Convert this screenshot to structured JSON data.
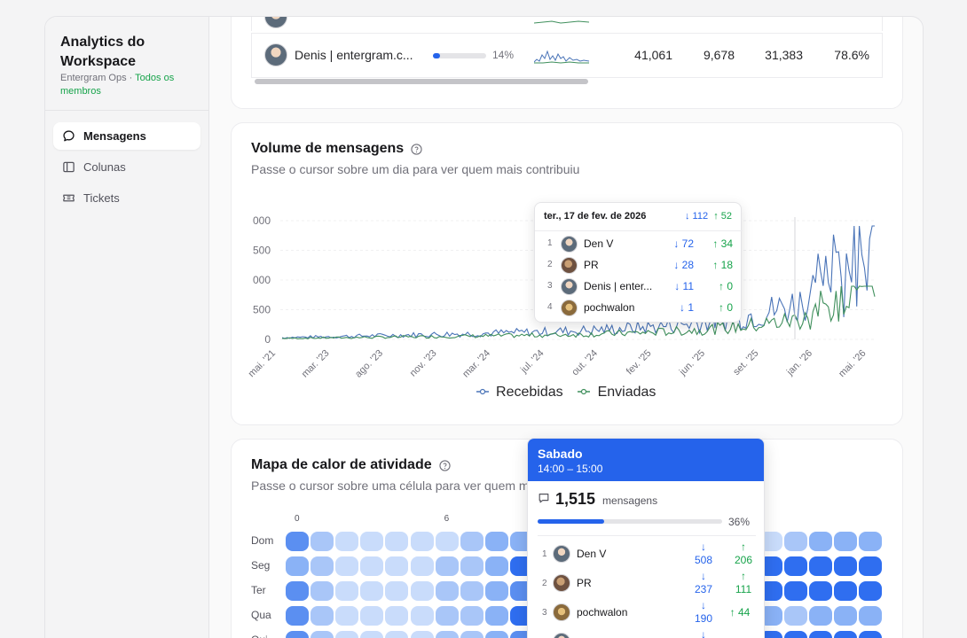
{
  "sidebar": {
    "title": "Analytics do Workspace",
    "workspace": "Entergram Ops",
    "separator": " · ",
    "scope_link": "Todos os membros",
    "nav": [
      {
        "label": "Mensagens",
        "icon": "message-icon",
        "active": true
      },
      {
        "label": "Colunas",
        "icon": "columns-icon",
        "active": false
      },
      {
        "label": "Tickets",
        "icon": "ticket-icon",
        "active": false
      }
    ]
  },
  "members_table": {
    "row": {
      "name": "Denis | entergram.c...",
      "share": "14%",
      "total": "41,061",
      "received": "9,678",
      "sent": "31,383",
      "ratio": "78.6%",
      "share_fraction": 0.14
    }
  },
  "volume": {
    "title": "Volume de mensagens",
    "subtitle": "Passe o cursor sobre um dia para ver quem mais contribuiu",
    "legend": {
      "received": "Recebidas",
      "sent": "Enviadas"
    },
    "tooltip": {
      "date": "ter., 17 de fev. de 2026",
      "total_received": "↓ 112",
      "total_sent": "↑ 52",
      "rows": [
        {
          "rank": "1",
          "name": "Den V",
          "received": "↓ 72",
          "sent": "↑ 34"
        },
        {
          "rank": "2",
          "name": "PR",
          "received": "↓ 28",
          "sent": "↑ 18"
        },
        {
          "rank": "3",
          "name": "Denis | enter...",
          "received": "↓ 11",
          "sent": "↑ 0"
        },
        {
          "rank": "4",
          "name": "pochwalon",
          "received": "↓ 1",
          "sent": "↑ 0"
        }
      ]
    }
  },
  "chart_data": {
    "type": "line",
    "title": "Volume de mensagens",
    "y_tick_labels": [
      "000",
      "500",
      "000",
      "500",
      "0"
    ],
    "x_tick_labels": [
      "mai. '21",
      "mar. '23",
      "ago. '23",
      "nov. '23",
      "mar. '24",
      "jul. '24",
      "out. '24",
      "fev. '25",
      "jun. '25",
      "set. '25",
      "jan. '26",
      "mai. '26"
    ],
    "series": [
      {
        "name": "Recebidas",
        "color": "#4a74b8"
      },
      {
        "name": "Enviadas",
        "color": "#3f8f5c"
      }
    ],
    "grid": true,
    "legend": "bottom"
  },
  "heatmap": {
    "title": "Mapa de calor de atividade",
    "subtitle": "Passe o cursor sobre uma célula para ver quem ma",
    "rows": [
      "Dom",
      "Seg",
      "Ter",
      "Qua",
      "Qui"
    ],
    "col_labels": [
      {
        "label": "0",
        "col": 0
      },
      {
        "label": "6",
        "col": 6
      }
    ],
    "tooltip": {
      "day": "Sabado",
      "time": "14:00 – 15:00",
      "count": "1,515",
      "count_label": "mensagens",
      "share": "36%",
      "share_fraction": 0.36,
      "rows": [
        {
          "rank": "1",
          "name": "Den V",
          "received": "508",
          "sent": "206"
        },
        {
          "rank": "2",
          "name": "PR",
          "received": "237",
          "sent": "111"
        },
        {
          "rank": "3",
          "name": "pochwalon",
          "received": "190",
          "sent": "44"
        }
      ]
    }
  }
}
